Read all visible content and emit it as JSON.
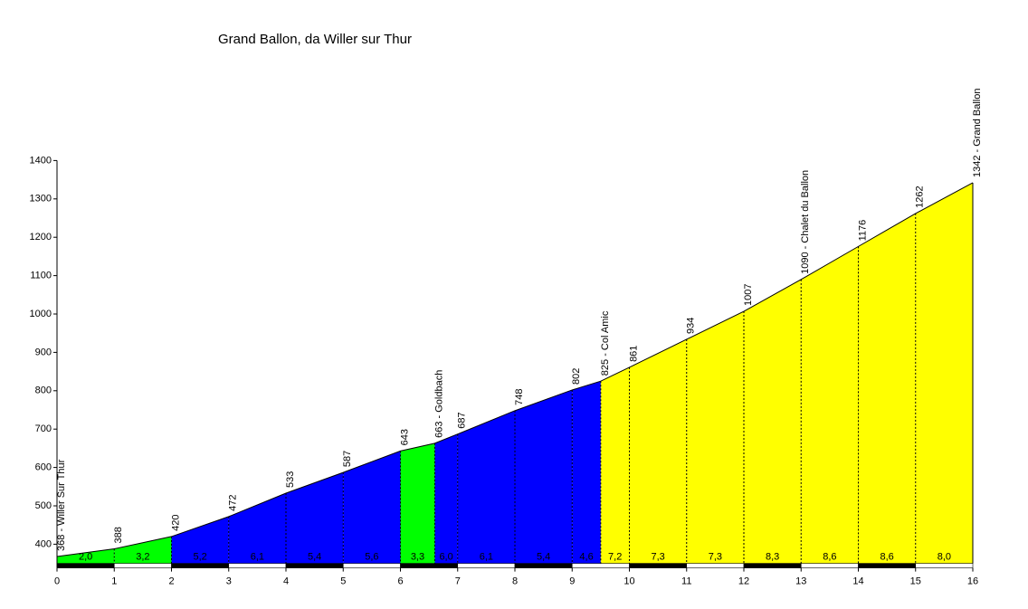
{
  "chart_data": {
    "type": "profile",
    "title": "Grand Ballon, da Willer sur Thur",
    "x": [
      0,
      1,
      2,
      3,
      4,
      5,
      6,
      6.6,
      7,
      8,
      9,
      9.5,
      10,
      11,
      12,
      13,
      14,
      15,
      16
    ],
    "values": [
      368,
      388,
      420,
      472,
      533,
      587,
      643,
      663,
      687,
      748,
      802,
      825,
      861,
      934,
      1007,
      1090,
      1176,
      1262,
      1342
    ],
    "value_labels": [
      "368 - Willer Sur Thur",
      "388",
      "420",
      "472",
      "533",
      "587",
      "643",
      "663 - Goldbach",
      "687",
      "748",
      "802",
      "825 - Col Amic",
      "861",
      "934",
      "1007",
      "1090 - Chalet du Ballon",
      "1176",
      "1262",
      "1342 - Grand Ballon"
    ],
    "gradients": [
      2.0,
      3.2,
      5.2,
      6.1,
      5.4,
      5.6,
      3.3,
      6.0,
      6.1,
      5.4,
      4.6,
      7.2,
      7.3,
      7.3,
      8.3,
      8.6,
      8.6,
      8.0
    ],
    "gradient_labels": [
      "2,0",
      "3,2",
      "5,2",
      "6,1",
      "5,4",
      "5,6",
      "3,3",
      "6,0",
      "6,1",
      "5,4",
      "4,6",
      "7,2",
      "7,3",
      "7,3",
      "8,3",
      "8,6",
      "8,6",
      "8,0"
    ],
    "segment_colors": [
      "#00ff00",
      "#00ff00",
      "#0000ff",
      "#0000ff",
      "#0000ff",
      "#0000ff",
      "#00ff00",
      "#0000ff",
      "#0000ff",
      "#0000ff",
      "#0000ff",
      "#ffff00",
      "#ffff00",
      "#ffff00",
      "#ffff00",
      "#ffff00",
      "#ffff00",
      "#ffff00"
    ],
    "xlim": [
      0,
      16
    ],
    "xticks": [
      0,
      1,
      2,
      3,
      4,
      5,
      6,
      7,
      8,
      9,
      10,
      11,
      12,
      13,
      14,
      15,
      16
    ],
    "ylim": [
      350,
      1400
    ],
    "yticks": [
      400,
      500,
      600,
      700,
      800,
      900,
      1000,
      1100,
      1200,
      1300,
      1400
    ]
  }
}
